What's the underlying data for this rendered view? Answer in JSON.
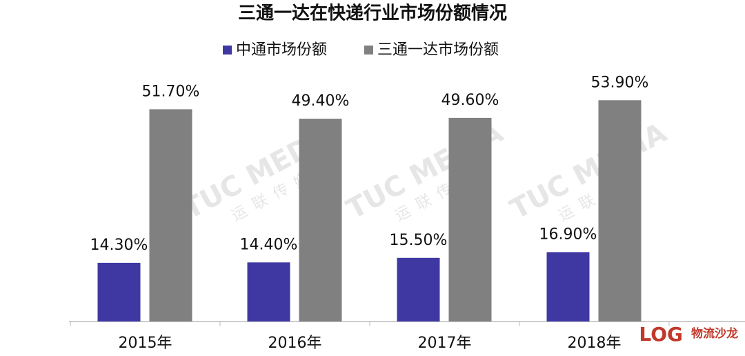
{
  "chart_data": {
    "type": "bar",
    "title": "三通一达在快递行业市场份额情况",
    "categories": [
      "2015年",
      "2016年",
      "2017年",
      "2018年"
    ],
    "series": [
      {
        "name": "中通市场份额",
        "color": "#3f38a3",
        "values": [
          14.3,
          14.4,
          15.5,
          16.9
        ],
        "value_labels": [
          "14.30%",
          "14.40%",
          "15.50%",
          "16.90%"
        ]
      },
      {
        "name": "三通一达市场份额",
        "color": "#808080",
        "values": [
          51.7,
          49.4,
          49.6,
          53.9
        ],
        "value_labels": [
          "51.70%",
          "49.40%",
          "49.60%",
          "53.90%"
        ]
      }
    ],
    "ylim": [
      0,
      60
    ],
    "legend": "top"
  },
  "watermark": {
    "text": "TUC MEDIA",
    "sub": "运联传媒"
  },
  "logo": {
    "text": "LOG",
    "sub": "物流沙龙"
  }
}
